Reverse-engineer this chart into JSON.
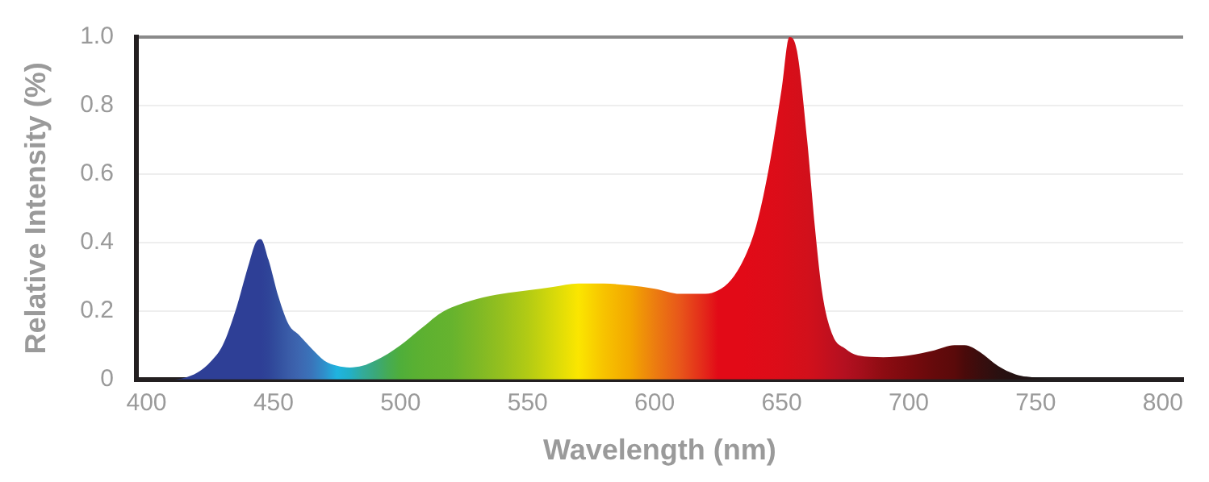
{
  "chart_data": {
    "type": "area",
    "xlabel": "Wavelength (nm)",
    "ylabel": "Relative Intensity (%)",
    "xlim": [
      396,
      808
    ],
    "xticks": [
      400,
      450,
      500,
      550,
      600,
      650,
      700,
      750,
      800
    ],
    "ylim": [
      0,
      1
    ],
    "yticks": [
      0,
      0.2,
      0.4,
      0.6,
      0.8,
      {
        "value": 1,
        "label": "1.0"
      }
    ],
    "grid": "y",
    "legend": false,
    "marker": "none",
    "series": [
      {
        "x": [
          396,
          410,
          415,
          420,
          425,
          430,
          435,
          440,
          443,
          445,
          448,
          452,
          456,
          460,
          465,
          470,
          475,
          480,
          485,
          490,
          495,
          500,
          505,
          510,
          515,
          520,
          530,
          540,
          550,
          560,
          570,
          580,
          590,
          600,
          610,
          620,
          625,
          630,
          635,
          640,
          645,
          650,
          653,
          656,
          660,
          663,
          666,
          670,
          675,
          680,
          690,
          700,
          710,
          718,
          722,
          728,
          735,
          742,
          750,
          760,
          808
        ],
        "values": [
          0,
          0,
          0.005,
          0.02,
          0.05,
          0.1,
          0.2,
          0.33,
          0.4,
          0.41,
          0.35,
          0.24,
          0.16,
          0.13,
          0.09,
          0.055,
          0.04,
          0.035,
          0.04,
          0.055,
          0.075,
          0.1,
          0.13,
          0.16,
          0.19,
          0.21,
          0.235,
          0.25,
          0.26,
          0.27,
          0.28,
          0.28,
          0.275,
          0.265,
          0.25,
          0.25,
          0.26,
          0.29,
          0.35,
          0.45,
          0.62,
          0.85,
          1.0,
          0.96,
          0.7,
          0.45,
          0.25,
          0.13,
          0.09,
          0.07,
          0.065,
          0.07,
          0.085,
          0.1,
          0.1,
          0.08,
          0.04,
          0.015,
          0.005,
          0,
          0
        ],
        "colors": [
          "#2e3f96",
          "#2e3f96",
          "#2e3f96",
          "#2e3f96",
          "#2e3f96",
          "#2e3f96",
          "#2e3f96",
          "#2e3f96",
          "#2e3f96",
          "#2e3f96",
          "#2f4498",
          "#33509f",
          "#3a5ca8",
          "#3d66b0",
          "#3a74ba",
          "#2f8fcb",
          "#1fb4e0",
          "#22b0c8",
          "#33ab9a",
          "#3aa87a",
          "#45ab55",
          "#4fae3a",
          "#58b033",
          "#5eb130",
          "#62b22f",
          "#66b32e",
          "#7db826",
          "#96c01e",
          "#b2cb14",
          "#d6d90a",
          "#fbe600",
          "#f7c300",
          "#f3a800",
          "#ec7d10",
          "#e8561a",
          "#e3251a",
          "#e20a17",
          "#e20a17",
          "#e20a17",
          "#e00b18",
          "#de0c18",
          "#db0d19",
          "#d80e19",
          "#d50f1a",
          "#d2101b",
          "#cd101c",
          "#c7101d",
          "#be101f",
          "#b31020",
          "#a80f1c",
          "#8d0c12",
          "#7a0a0e",
          "#650a0b",
          "#5a0a0a",
          "#4a0a0a",
          "#3a0d0d",
          "#2a1010",
          "#231212",
          "#1e1616",
          "#1a1a1a",
          "#1a1a1a"
        ]
      }
    ]
  }
}
